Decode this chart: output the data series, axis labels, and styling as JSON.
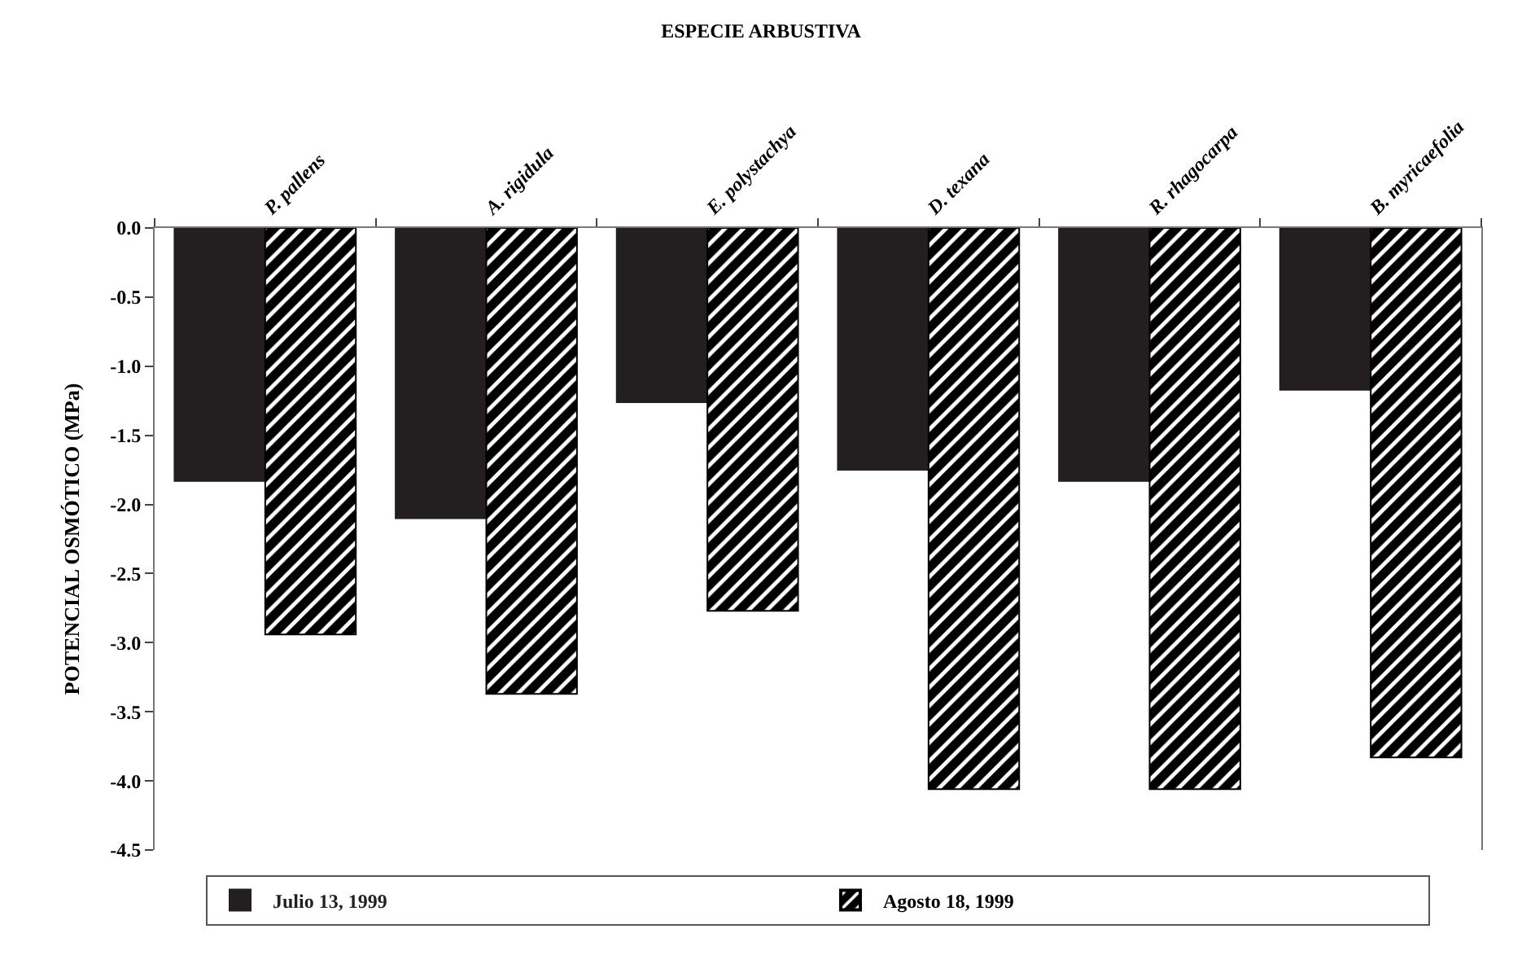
{
  "chart_data": {
    "type": "bar",
    "title": "ESPECIE ARBUSTIVA",
    "ylabel": "POTENCIAL OSMÓTICO (MPa)",
    "categories": [
      "P. pallens",
      "A. rigidula",
      "E. polystachya",
      "D. texana",
      "R. rhagocarpa",
      "B. myricaefolia"
    ],
    "series": [
      {
        "name": "Julio 13, 1999",
        "color": "#231f20",
        "values": [
          -1.83,
          -2.1,
          -1.26,
          -1.75,
          -1.83,
          -1.17
        ]
      },
      {
        "name": "Agosto 18, 1999",
        "color": "#000000",
        "values": [
          -2.94,
          -3.37,
          -2.77,
          -4.06,
          -4.06,
          -3.83
        ]
      }
    ],
    "ylim": [
      -4.5,
      0
    ],
    "yticks": [
      {
        "value": 0,
        "label": "0.0"
      },
      -0.5,
      {
        "value": -1,
        "label": "-1.0"
      },
      -1.5,
      {
        "value": -2,
        "label": "-2.0"
      },
      -2.5,
      {
        "value": -3,
        "label": "-3.0"
      },
      -3.5,
      {
        "value": -4,
        "label": "-4.0"
      },
      -4.5
    ],
    "legend": "bottom"
  }
}
